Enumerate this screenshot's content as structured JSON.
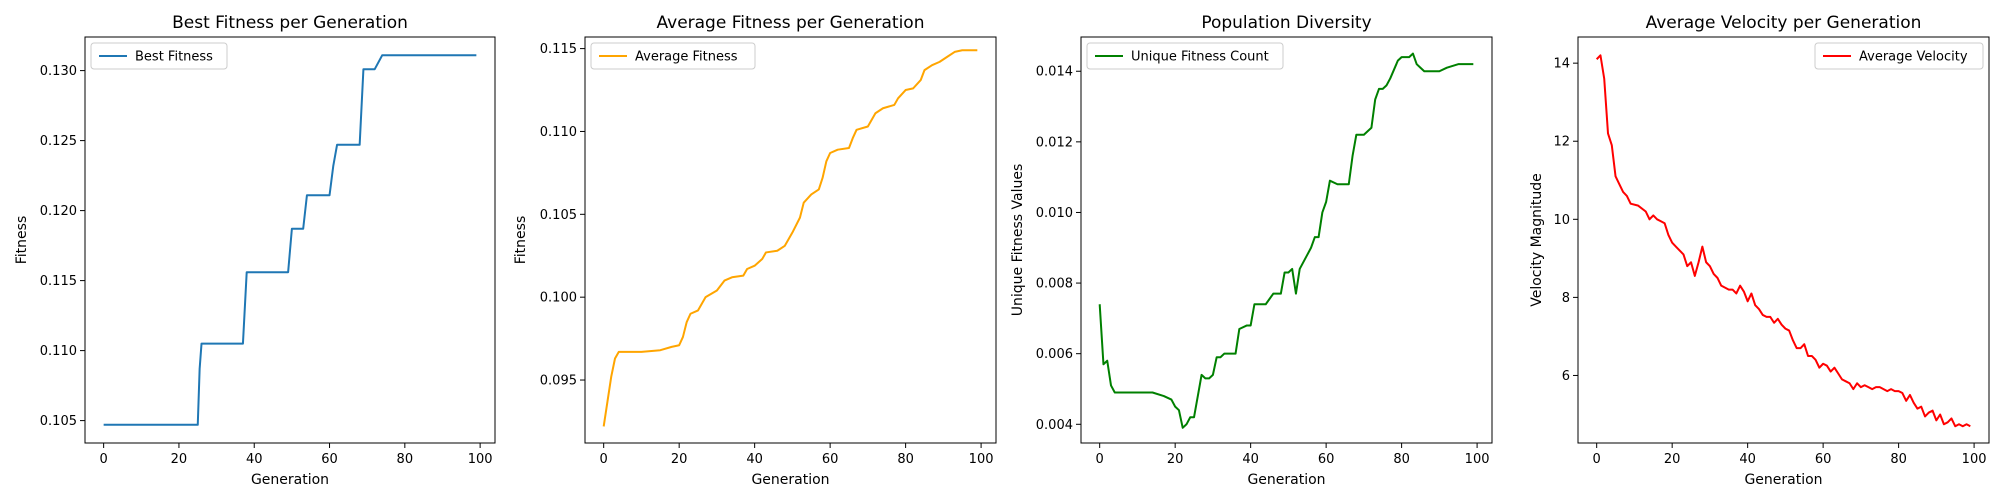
{
  "chart_data": [
    {
      "type": "line",
      "title": "Best Fitness per Generation",
      "xlabel": "Generation",
      "ylabel": "Fitness",
      "xlim": [
        -4.95,
        103.95
      ],
      "ylim": [
        0.1034,
        0.1324
      ],
      "xticks": [
        "0",
        "20",
        "40",
        "60",
        "80",
        "100"
      ],
      "xtick_values": [
        0,
        20,
        40,
        60,
        80,
        100
      ],
      "yticks": [
        "0.105",
        "0.110",
        "0.115",
        "0.120",
        "0.125",
        "0.130"
      ],
      "ytick_values": [
        0.105,
        0.11,
        0.115,
        0.12,
        0.125,
        0.13
      ],
      "legend_loc": "upper-left",
      "series": [
        {
          "name": "Best Fitness",
          "color": "#1f77b4",
          "points": [
            [
              0,
              0.1047
            ],
            [
              25,
              0.1047
            ],
            [
              25.5,
              0.1087
            ],
            [
              26,
              0.1105
            ],
            [
              37,
              0.1105
            ],
            [
              38,
              0.1156
            ],
            [
              49,
              0.1156
            ],
            [
              50,
              0.1187
            ],
            [
              53,
              0.1187
            ],
            [
              54,
              0.1211
            ],
            [
              60,
              0.1211
            ],
            [
              61,
              0.1232
            ],
            [
              62,
              0.1247
            ],
            [
              68,
              0.1247
            ],
            [
              69,
              0.1301
            ],
            [
              72,
              0.1301
            ],
            [
              74,
              0.1311
            ],
            [
              99,
              0.1311
            ]
          ]
        }
      ]
    },
    {
      "type": "line",
      "title": "Average Fitness per Generation",
      "xlabel": "Generation",
      "ylabel": "Fitness",
      "xlim": [
        -4.95,
        103.95
      ],
      "ylim": [
        0.0912,
        0.1157
      ],
      "xticks": [
        "0",
        "20",
        "40",
        "60",
        "80",
        "100"
      ],
      "xtick_values": [
        0,
        20,
        40,
        60,
        80,
        100
      ],
      "yticks": [
        "0.095",
        "0.100",
        "0.105",
        "0.110",
        "0.115"
      ],
      "ytick_values": [
        0.095,
        0.1,
        0.105,
        0.11,
        0.115
      ],
      "legend_loc": "upper-left",
      "series": [
        {
          "name": "Average Fitness",
          "color": "#ffa500",
          "points": [
            [
              0,
              0.0922
            ],
            [
              1,
              0.0937
            ],
            [
              2,
              0.0952
            ],
            [
              3,
              0.0963
            ],
            [
              4,
              0.0967
            ],
            [
              6,
              0.0967
            ],
            [
              10,
              0.0967
            ],
            [
              15,
              0.0968
            ],
            [
              18,
              0.097
            ],
            [
              20,
              0.0971
            ],
            [
              21,
              0.0976
            ],
            [
              22,
              0.0985
            ],
            [
              23,
              0.099
            ],
            [
              25,
              0.0992
            ],
            [
              27,
              0.1
            ],
            [
              30,
              0.1004
            ],
            [
              32,
              0.101
            ],
            [
              34,
              0.1012
            ],
            [
              37,
              0.1013
            ],
            [
              38,
              0.1017
            ],
            [
              40,
              0.1019
            ],
            [
              42,
              0.1023
            ],
            [
              43,
              0.1027
            ],
            [
              46,
              0.1028
            ],
            [
              48,
              0.1031
            ],
            [
              50,
              0.1039
            ],
            [
              52,
              0.1048
            ],
            [
              53,
              0.1057
            ],
            [
              55,
              0.1062
            ],
            [
              57,
              0.1065
            ],
            [
              58,
              0.1072
            ],
            [
              59,
              0.1082
            ],
            [
              60,
              0.1087
            ],
            [
              62,
              0.1089
            ],
            [
              65,
              0.109
            ],
            [
              66,
              0.1096
            ],
            [
              67,
              0.1101
            ],
            [
              70,
              0.1103
            ],
            [
              72,
              0.1111
            ],
            [
              74,
              0.1114
            ],
            [
              77,
              0.1116
            ],
            [
              78,
              0.112
            ],
            [
              80,
              0.1125
            ],
            [
              82,
              0.1126
            ],
            [
              84,
              0.1131
            ],
            [
              85,
              0.1137
            ],
            [
              87,
              0.114
            ],
            [
              89,
              0.1142
            ],
            [
              91,
              0.1145
            ],
            [
              93,
              0.1148
            ],
            [
              95,
              0.1149
            ],
            [
              99,
              0.1149
            ]
          ]
        }
      ]
    },
    {
      "type": "line",
      "title": "Population Diversity",
      "xlabel": "Generation",
      "ylabel": "Unique Fitness Values",
      "xlim": [
        -4.95,
        103.95
      ],
      "ylim": [
        0.00347,
        0.01497
      ],
      "xticks": [
        "0",
        "20",
        "40",
        "60",
        "80",
        "100"
      ],
      "xtick_values": [
        0,
        20,
        40,
        60,
        80,
        100
      ],
      "yticks": [
        "0.004",
        "0.006",
        "0.008",
        "0.010",
        "0.012",
        "0.014"
      ],
      "ytick_values": [
        0.004,
        0.006,
        0.008,
        0.01,
        0.012,
        0.014
      ],
      "legend_loc": "upper-left",
      "series": [
        {
          "name": "Unique Fitness Count",
          "color": "#008000",
          "points": [
            [
              0,
              0.0074
            ],
            [
              1,
              0.0057
            ],
            [
              2,
              0.0058
            ],
            [
              3,
              0.0051
            ],
            [
              4,
              0.0049
            ],
            [
              8,
              0.0049
            ],
            [
              14,
              0.0049
            ],
            [
              17,
              0.0048
            ],
            [
              19,
              0.0047
            ],
            [
              20,
              0.0045
            ],
            [
              21,
              0.0044
            ],
            [
              22,
              0.0039
            ],
            [
              23,
              0.004
            ],
            [
              24,
              0.0042
            ],
            [
              25,
              0.0042
            ],
            [
              26,
              0.0048
            ],
            [
              27,
              0.0054
            ],
            [
              28,
              0.0053
            ],
            [
              29,
              0.0053
            ],
            [
              30,
              0.0054
            ],
            [
              31,
              0.0059
            ],
            [
              32,
              0.0059
            ],
            [
              33,
              0.006
            ],
            [
              36,
              0.006
            ],
            [
              37,
              0.0067
            ],
            [
              39,
              0.0068
            ],
            [
              40,
              0.0068
            ],
            [
              41,
              0.0074
            ],
            [
              44,
              0.0074
            ],
            [
              46,
              0.0077
            ],
            [
              48,
              0.0077
            ],
            [
              49,
              0.0083
            ],
            [
              50,
              0.0083
            ],
            [
              51,
              0.0084
            ],
            [
              52,
              0.0077
            ],
            [
              53,
              0.0084
            ],
            [
              55,
              0.0088
            ],
            [
              56,
              0.009
            ],
            [
              57,
              0.0093
            ],
            [
              58,
              0.0093
            ],
            [
              59,
              0.01
            ],
            [
              60,
              0.0103
            ],
            [
              61,
              0.0109
            ],
            [
              63,
              0.0108
            ],
            [
              66,
              0.0108
            ],
            [
              67,
              0.0116
            ],
            [
              68,
              0.0122
            ],
            [
              70,
              0.0122
            ],
            [
              72,
              0.0124
            ],
            [
              73,
              0.0132
            ],
            [
              74,
              0.0135
            ],
            [
              75,
              0.0135
            ],
            [
              76,
              0.0136
            ],
            [
              77,
              0.0138
            ],
            [
              79,
              0.0143
            ],
            [
              80,
              0.0144
            ],
            [
              82,
              0.0144
            ],
            [
              83,
              0.0145
            ],
            [
              84,
              0.0142
            ],
            [
              85,
              0.0141
            ],
            [
              86,
              0.014
            ],
            [
              90,
              0.014
            ],
            [
              92,
              0.0141
            ],
            [
              95,
              0.0142
            ],
            [
              99,
              0.0142
            ]
          ]
        }
      ]
    },
    {
      "type": "line",
      "title": "Average Velocity per Generation",
      "xlabel": "Generation",
      "ylabel": "Velocity Magnitude",
      "xlim": [
        -4.95,
        103.95
      ],
      "ylim": [
        4.27,
        14.67
      ],
      "xticks": [
        "0",
        "20",
        "40",
        "60",
        "80",
        "100"
      ],
      "xtick_values": [
        0,
        20,
        40,
        60,
        80,
        100
      ],
      "yticks": [
        "6",
        "8",
        "10",
        "12",
        "14"
      ],
      "ytick_values": [
        6,
        8,
        10,
        12,
        14
      ],
      "legend_loc": "upper-right",
      "series": [
        {
          "name": "Average Velocity",
          "color": "#ff0000",
          "points": [
            [
              0,
              14.1
            ],
            [
              1,
              14.2
            ],
            [
              2,
              13.6
            ],
            [
              3,
              12.2
            ],
            [
              4,
              11.9
            ],
            [
              5,
              11.1
            ],
            [
              6,
              10.9
            ],
            [
              7,
              10.7
            ],
            [
              8,
              10.6
            ],
            [
              9,
              10.4
            ],
            [
              11,
              10.35
            ],
            [
              13,
              10.2
            ],
            [
              14,
              10.0
            ],
            [
              15,
              10.1
            ],
            [
              16,
              10.0
            ],
            [
              17,
              9.95
            ],
            [
              18,
              9.9
            ],
            [
              19,
              9.6
            ],
            [
              20,
              9.4
            ],
            [
              21,
              9.3
            ],
            [
              22,
              9.2
            ],
            [
              23,
              9.1
            ],
            [
              24,
              8.8
            ],
            [
              25,
              8.9
            ],
            [
              26,
              8.55
            ],
            [
              27,
              8.9
            ],
            [
              28,
              9.3
            ],
            [
              29,
              8.9
            ],
            [
              30,
              8.8
            ],
            [
              31,
              8.6
            ],
            [
              32,
              8.5
            ],
            [
              33,
              8.3
            ],
            [
              34,
              8.25
            ],
            [
              35,
              8.2
            ],
            [
              36,
              8.2
            ],
            [
              37,
              8.1
            ],
            [
              38,
              8.3
            ],
            [
              39,
              8.15
            ],
            [
              40,
              7.9
            ],
            [
              41,
              8.1
            ],
            [
              42,
              7.8
            ],
            [
              43,
              7.7
            ],
            [
              44,
              7.55
            ],
            [
              45,
              7.5
            ],
            [
              46,
              7.5
            ],
            [
              47,
              7.35
            ],
            [
              48,
              7.45
            ],
            [
              49,
              7.3
            ],
            [
              50,
              7.2
            ],
            [
              51,
              7.15
            ],
            [
              52,
              6.9
            ],
            [
              53,
              6.7
            ],
            [
              54,
              6.7
            ],
            [
              55,
              6.8
            ],
            [
              56,
              6.5
            ],
            [
              57,
              6.5
            ],
            [
              58,
              6.4
            ],
            [
              59,
              6.2
            ],
            [
              60,
              6.3
            ],
            [
              61,
              6.25
            ],
            [
              62,
              6.1
            ],
            [
              63,
              6.2
            ],
            [
              64,
              6.05
            ],
            [
              65,
              5.9
            ],
            [
              66,
              5.85
            ],
            [
              67,
              5.8
            ],
            [
              68,
              5.65
            ],
            [
              69,
              5.8
            ],
            [
              70,
              5.7
            ],
            [
              71,
              5.75
            ],
            [
              72,
              5.7
            ],
            [
              73,
              5.65
            ],
            [
              74,
              5.7
            ],
            [
              75,
              5.7
            ],
            [
              76,
              5.65
            ],
            [
              77,
              5.6
            ],
            [
              78,
              5.65
            ],
            [
              79,
              5.6
            ],
            [
              80,
              5.6
            ],
            [
              81,
              5.55
            ],
            [
              82,
              5.35
            ],
            [
              83,
              5.5
            ],
            [
              84,
              5.3
            ],
            [
              85,
              5.15
            ],
            [
              86,
              5.2
            ],
            [
              87,
              4.95
            ],
            [
              88,
              5.05
            ],
            [
              89,
              5.1
            ],
            [
              90,
              4.85
            ],
            [
              91,
              5.0
            ],
            [
              92,
              4.75
            ],
            [
              93,
              4.8
            ],
            [
              94,
              4.9
            ],
            [
              95,
              4.7
            ],
            [
              96,
              4.75
            ],
            [
              97,
              4.7
            ],
            [
              98,
              4.75
            ],
            [
              99,
              4.7
            ]
          ]
        }
      ]
    }
  ]
}
